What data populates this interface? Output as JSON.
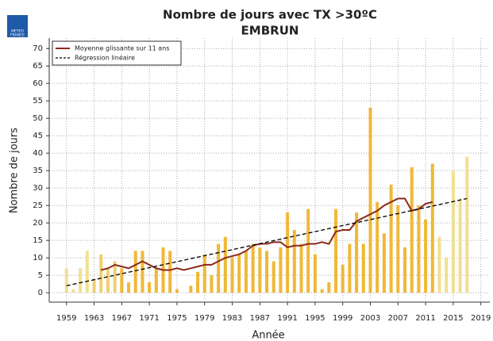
{
  "logo": [
    "METEO",
    "FRANCE"
  ],
  "chart_data": {
    "type": "bar",
    "title": "Nombre de jours avec TX >30ºC",
    "subtitle": "EMBRUN",
    "xlabel": "Année",
    "ylabel": "Nombre de jours",
    "x": [
      1959,
      1960,
      1961,
      1962,
      1963,
      1964,
      1965,
      1966,
      1967,
      1968,
      1969,
      1970,
      1971,
      1972,
      1973,
      1974,
      1975,
      1976,
      1977,
      1978,
      1979,
      1980,
      1981,
      1982,
      1983,
      1984,
      1985,
      1986,
      1987,
      1988,
      1989,
      1990,
      1991,
      1992,
      1993,
      1994,
      1995,
      1996,
      1997,
      1998,
      1999,
      2000,
      2001,
      2002,
      2003,
      2004,
      2005,
      2006,
      2007,
      2008,
      2009,
      2010,
      2011,
      2012,
      2013,
      2014,
      2015,
      2016,
      2017
    ],
    "values": [
      7,
      1,
      7,
      12,
      4,
      11,
      7,
      9,
      7,
      3,
      12,
      12,
      3,
      7,
      13,
      12,
      1,
      0,
      2,
      6,
      11,
      5,
      14,
      16,
      10,
      11,
      12,
      14,
      13,
      12,
      9,
      13,
      23,
      18,
      14,
      24,
      11,
      1,
      3,
      24,
      8,
      14,
      23,
      14,
      53,
      26,
      17,
      31,
      25,
      13,
      36,
      25,
      21,
      37,
      16,
      10,
      35,
      27,
      39
    ],
    "bar_colors": [
      "#f0e090",
      "#f0e090",
      "#f0e090",
      "#f0e090",
      "#f0cf70",
      "#f0cf70",
      "#f0cf70",
      "#f0cf70",
      "#f0b838",
      "#f0b838",
      "#f0b838",
      "#f0b838",
      "#f0b838",
      "#f0b838",
      "#f0b838",
      "#f0b838",
      "#f0b838",
      "#f0b838",
      "#f0b838",
      "#f0b838",
      "#f0b838",
      "#f0b838",
      "#f0b838",
      "#f0b838",
      "#f0b838",
      "#f0b838",
      "#f0b838",
      "#f0b838",
      "#f0b838",
      "#f0b838",
      "#f0b838",
      "#f0b838",
      "#f0b838",
      "#f0b838",
      "#f0b838",
      "#f0b838",
      "#f0b838",
      "#f0b838",
      "#f0b838",
      "#f0b838",
      "#f0b838",
      "#f0b838",
      "#f0b838",
      "#f0b838",
      "#f0b838",
      "#f0b838",
      "#f0b838",
      "#f0b838",
      "#f0b838",
      "#f0b838",
      "#f0b838",
      "#f0b838",
      "#f0b838",
      "#f0b838",
      "#f0e090",
      "#f0e090",
      "#f0e090",
      "#f0e090",
      "#f0e090"
    ],
    "series": [
      {
        "name": "Moyenne glissante sur 11 ans",
        "color": "#8b2a1a",
        "dashed": false,
        "x": [
          1964,
          1965,
          1966,
          1967,
          1968,
          1969,
          1970,
          1971,
          1972,
          1973,
          1974,
          1975,
          1976,
          1977,
          1978,
          1979,
          1980,
          1981,
          1982,
          1983,
          1984,
          1985,
          1986,
          1987,
          1988,
          1989,
          1990,
          1991,
          1992,
          1993,
          1994,
          1995,
          1996,
          1997,
          1998,
          1999,
          2000,
          2001,
          2002,
          2003,
          2004,
          2005,
          2006,
          2007,
          2008,
          2009,
          2010,
          2011,
          2012
        ],
        "values": [
          6.5,
          7,
          8,
          7.5,
          7,
          8,
          9,
          8,
          7,
          6.5,
          6.5,
          7,
          6.5,
          7,
          7.5,
          8,
          8,
          9,
          10,
          10.5,
          11,
          12,
          13.5,
          14,
          14,
          14.5,
          14.5,
          13,
          13.5,
          13.5,
          14,
          14,
          14.5,
          14,
          17.5,
          18,
          18,
          20.5,
          21.5,
          22.5,
          23.5,
          25,
          26,
          27,
          27,
          23.5,
          24,
          25.5,
          26
        ]
      },
      {
        "name": "Régression linéaire",
        "color": "#000000",
        "dashed": true,
        "x": [
          1959,
          2017
        ],
        "values": [
          2,
          27
        ]
      }
    ],
    "xlim": [
      1956.5,
      2020.3
    ],
    "ylim": [
      -2.7,
      73
    ],
    "xticks": [
      1959,
      1963,
      1967,
      1971,
      1975,
      1979,
      1983,
      1987,
      1991,
      1995,
      1999,
      2003,
      2007,
      2011,
      2015,
      2019
    ],
    "yticks": [
      0,
      5,
      10,
      15,
      20,
      25,
      30,
      35,
      40,
      45,
      50,
      55,
      60,
      65,
      70
    ],
    "grid": true,
    "legend": "upper left"
  }
}
